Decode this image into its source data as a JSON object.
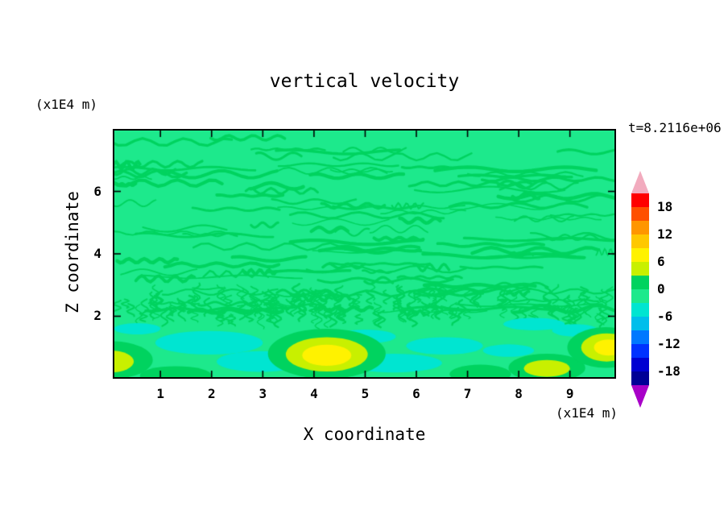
{
  "title": "vertical velocity",
  "timestamp_label": "t=8.2116e+06",
  "y_axis": {
    "unit_label": "(x1E4 m)",
    "label": "Z coordinate",
    "ticks": [
      "2",
      "4",
      "6"
    ]
  },
  "x_axis": {
    "unit_label": "(x1E4 m)",
    "label": "X coordinate",
    "ticks": [
      "1",
      "2",
      "3",
      "4",
      "5",
      "6",
      "7",
      "8",
      "9"
    ]
  },
  "colorbar": {
    "labels": [
      "18",
      "12",
      "6",
      "0",
      "-6",
      "-12",
      "-18"
    ],
    "segment_colors": [
      "#FF0000",
      "#FF5000",
      "#FF9600",
      "#FFC800",
      "#FFF200",
      "#C8F000",
      "#00D35F",
      "#1DE98C",
      "#00E5D1",
      "#00BEEB",
      "#0078FF",
      "#0032FF",
      "#0000D2",
      "#000096"
    ],
    "top_arrow_color": "#F2ABBE",
    "bottom_arrow_color": "#A800C8"
  },
  "chart_data": {
    "type": "heatmap",
    "subtype": "filled_contour",
    "title": "vertical velocity",
    "xlabel": "X coordinate",
    "ylabel": "Z coordinate",
    "x_unit": "(x1E4 m)",
    "z_unit": "(x1E4 m)",
    "time_annotation": "t=8.2116e+06",
    "x_range": [
      0.1,
      9.87
    ],
    "z_range": [
      0.05,
      7.95
    ],
    "x_ticks": [
      1,
      2,
      3,
      4,
      5,
      6,
      7,
      8,
      9
    ],
    "z_ticks": [
      2,
      4,
      6
    ],
    "contour_interval": 3,
    "colorbar_labels": [
      18,
      12,
      6,
      0,
      -6,
      -12,
      -18
    ],
    "value_span": [
      -21,
      21
    ],
    "field_description": "Field is near zero (-3..3) almost everywhere: fine wavy horizontal green banding for z>2, a dense striation band near z=2, and larger cells below z=2 with updraft maxima of 6..9 near x=4.25, x=9.75 and downdraft patches of -6..-3 scattered along the bottom.",
    "background_level": "-3..0",
    "field_colors": {
      "-6..-3": "#00E5D1",
      "-3..0": "#1DE98C",
      "0..3": "#00D35F",
      "3..6": "#C8F000",
      "6..9": "#FFF200"
    },
    "streaks": {
      "seed": 20,
      "count": 120,
      "z_min": 2.05,
      "z_max": 7.85,
      "level": "0..3"
    },
    "striations": {
      "seed": 77,
      "count": 170,
      "z_min": 1.85,
      "z_max": 2.8,
      "level": "0..3"
    },
    "blobs": [
      {
        "x": 1.95,
        "z": 1.15,
        "rx": 1.05,
        "rz": 0.38,
        "level": "-6..-3"
      },
      {
        "x": 2.95,
        "z": 0.55,
        "rx": 0.85,
        "rz": 0.33,
        "level": "-6..-3"
      },
      {
        "x": 0.55,
        "z": 1.6,
        "rx": 0.45,
        "rz": 0.18,
        "level": "-6..-3"
      },
      {
        "x": 5.55,
        "z": 0.5,
        "rx": 0.95,
        "rz": 0.3,
        "level": "-6..-3"
      },
      {
        "x": 5.0,
        "z": 1.35,
        "rx": 0.6,
        "rz": 0.22,
        "level": "-6..-3"
      },
      {
        "x": 6.55,
        "z": 1.05,
        "rx": 0.75,
        "rz": 0.28,
        "level": "-6..-3"
      },
      {
        "x": 7.8,
        "z": 0.9,
        "rx": 0.5,
        "rz": 0.2,
        "level": "-6..-3"
      },
      {
        "x": 8.3,
        "z": 1.75,
        "rx": 0.6,
        "rz": 0.2,
        "level": "-6..-3"
      },
      {
        "x": 9.1,
        "z": 1.55,
        "rx": 0.45,
        "rz": 0.2,
        "level": "-6..-3"
      },
      {
        "x": 4.25,
        "z": 0.8,
        "rx": 1.15,
        "rz": 0.8,
        "level": "0..3"
      },
      {
        "x": 0.05,
        "z": 0.6,
        "rx": 0.8,
        "rz": 0.6,
        "level": "0..3"
      },
      {
        "x": 1.3,
        "z": 0.1,
        "rx": 0.7,
        "rz": 0.3,
        "level": "0..3"
      },
      {
        "x": 7.25,
        "z": 0.15,
        "rx": 0.6,
        "rz": 0.3,
        "level": "0..3"
      },
      {
        "x": 8.55,
        "z": 0.35,
        "rx": 0.75,
        "rz": 0.45,
        "level": "0..3"
      },
      {
        "x": 9.7,
        "z": 1.0,
        "rx": 0.75,
        "rz": 0.65,
        "level": "0..3"
      },
      {
        "x": 4.25,
        "z": 0.78,
        "rx": 0.8,
        "rz": 0.55,
        "level": "3..6"
      },
      {
        "x": 0.03,
        "z": 0.55,
        "rx": 0.45,
        "rz": 0.35,
        "level": "3..6"
      },
      {
        "x": 8.55,
        "z": 0.33,
        "rx": 0.45,
        "rz": 0.27,
        "level": "3..6"
      },
      {
        "x": 9.72,
        "z": 1.0,
        "rx": 0.5,
        "rz": 0.45,
        "level": "3..6"
      },
      {
        "x": 4.25,
        "z": 0.75,
        "rx": 0.48,
        "rz": 0.34,
        "level": "6..9"
      },
      {
        "x": 9.75,
        "z": 1.0,
        "rx": 0.28,
        "rz": 0.26,
        "level": "6..9"
      }
    ]
  }
}
